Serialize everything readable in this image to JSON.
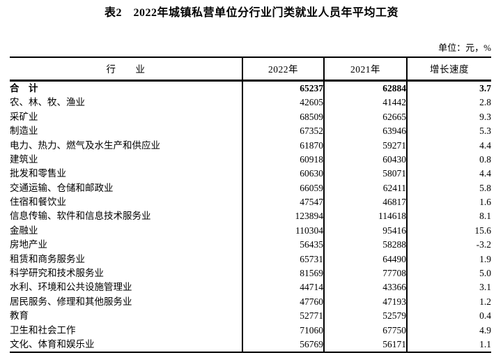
{
  "title": "表2　2022年城镇私营单位分行业门类就业人员年平均工资",
  "unit_note": "单位：元，%",
  "table": {
    "columns": [
      "行　　业",
      "2022年",
      "2021年",
      "增长速度"
    ],
    "rows": [
      {
        "industry": "合　计",
        "y2022": "65237",
        "y2021": "62884",
        "growth": "3.7",
        "bold": true
      },
      {
        "industry": "农、林、牧、渔业",
        "y2022": "42605",
        "y2021": "41442",
        "growth": "2.8",
        "bold": false
      },
      {
        "industry": "采矿业",
        "y2022": "68509",
        "y2021": "62665",
        "growth": "9.3",
        "bold": false
      },
      {
        "industry": "制造业",
        "y2022": "67352",
        "y2021": "63946",
        "growth": "5.3",
        "bold": false
      },
      {
        "industry": "电力、热力、燃气及水生产和供应业",
        "y2022": "61870",
        "y2021": "59271",
        "growth": "4.4",
        "bold": false
      },
      {
        "industry": "建筑业",
        "y2022": "60918",
        "y2021": "60430",
        "growth": "0.8",
        "bold": false
      },
      {
        "industry": "批发和零售业",
        "y2022": "60630",
        "y2021": "58071",
        "growth": "4.4",
        "bold": false
      },
      {
        "industry": "交通运输、仓储和邮政业",
        "y2022": "66059",
        "y2021": "62411",
        "growth": "5.8",
        "bold": false
      },
      {
        "industry": "住宿和餐饮业",
        "y2022": "47547",
        "y2021": "46817",
        "growth": "1.6",
        "bold": false
      },
      {
        "industry": "信息传输、软件和信息技术服务业",
        "y2022": "123894",
        "y2021": "114618",
        "growth": "8.1",
        "bold": false
      },
      {
        "industry": "金融业",
        "y2022": "110304",
        "y2021": "95416",
        "growth": "15.6",
        "bold": false
      },
      {
        "industry": "房地产业",
        "y2022": "56435",
        "y2021": "58288",
        "growth": "-3.2",
        "bold": false
      },
      {
        "industry": "租赁和商务服务业",
        "y2022": "65731",
        "y2021": "64490",
        "growth": "1.9",
        "bold": false
      },
      {
        "industry": "科学研究和技术服务业",
        "y2022": "81569",
        "y2021": "77708",
        "growth": "5.0",
        "bold": false
      },
      {
        "industry": "水利、环境和公共设施管理业",
        "y2022": "44714",
        "y2021": "43366",
        "growth": "3.1",
        "bold": false
      },
      {
        "industry": "居民服务、修理和其他服务业",
        "y2022": "47760",
        "y2021": "47193",
        "growth": "1.2",
        "bold": false
      },
      {
        "industry": "教育",
        "y2022": "52771",
        "y2021": "52579",
        "growth": "0.4",
        "bold": false
      },
      {
        "industry": "卫生和社会工作",
        "y2022": "71060",
        "y2021": "67750",
        "growth": "4.9",
        "bold": false
      },
      {
        "industry": "文化、体育和娱乐业",
        "y2022": "56769",
        "y2021": "56171",
        "growth": "1.1",
        "bold": false
      }
    ]
  }
}
